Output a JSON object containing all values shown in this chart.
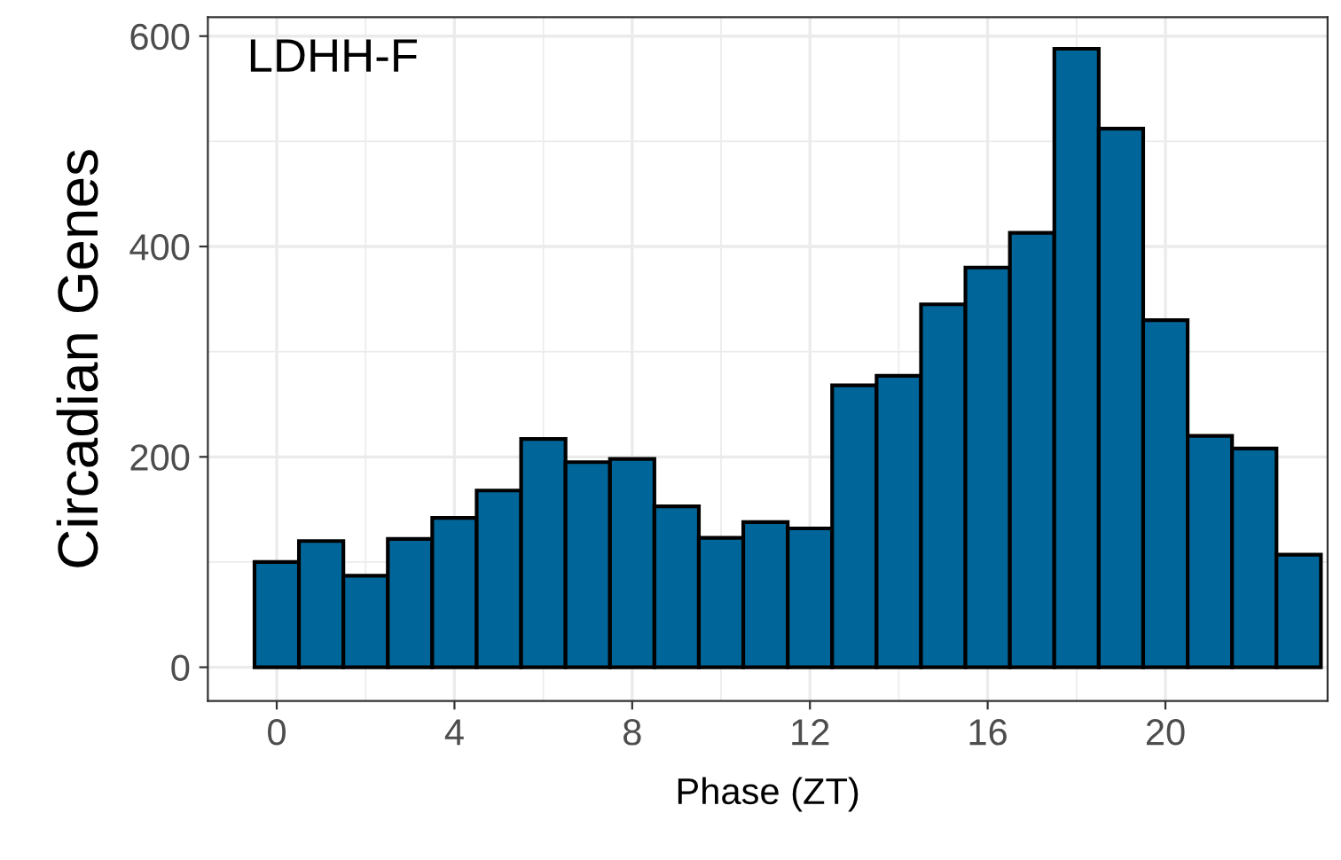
{
  "chart_data": {
    "type": "histogram",
    "xlabel": "Phase (ZT)",
    "ylabel": "Circadian Genes",
    "annotations": [
      "LDHH-F"
    ],
    "bins": [
      -0.5,
      0.5,
      1.5,
      2.5,
      3.5,
      4.5,
      5.5,
      6.5,
      7.5,
      8.5,
      9.5,
      10.5,
      11.5,
      12.5,
      13.5,
      14.5,
      15.5,
      16.5,
      17.5,
      18.5,
      19.5,
      20.5,
      21.5,
      22.5,
      23.5
    ],
    "values": [
      100,
      120,
      87,
      122,
      142,
      168,
      217,
      195,
      198,
      153,
      123,
      138,
      132,
      268,
      277,
      345,
      380,
      413,
      588,
      512,
      330,
      220,
      208,
      107
    ],
    "color": "#006699",
    "xlim": [
      -1.55,
      23.65
    ],
    "ylim": [
      -32,
      618
    ],
    "xticks": [
      0,
      4,
      8,
      12,
      16,
      20
    ],
    "yticks": [
      0,
      200,
      400,
      600
    ],
    "grid": true
  }
}
